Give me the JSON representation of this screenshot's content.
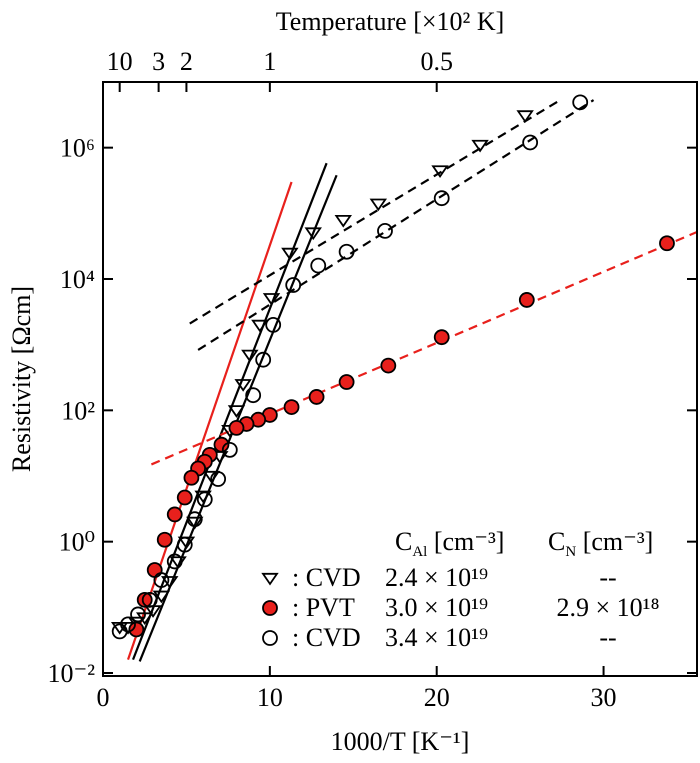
{
  "chart_data": {
    "type": "scatter",
    "xlabel": "1000/T  [K⁻¹]",
    "ylabel": "Resistivity  [Ωcm]",
    "x2label": "Temperature  [×10² K]",
    "xlim": [
      0,
      35.6
    ],
    "xticks": [
      0,
      10,
      20,
      30
    ],
    "x2ticks": [
      10,
      3,
      2,
      1,
      0.5
    ],
    "ylim": [
      0.009,
      10000000
    ],
    "log_y": true,
    "yticks": [
      {
        "value": 0.01,
        "label": "10⁻²"
      },
      {
        "value": 1,
        "label": "10⁰"
      },
      {
        "value": 100,
        "label": "10²"
      },
      {
        "value": 10000,
        "label": "10⁴"
      },
      {
        "value": 1000000,
        "label": "10⁶"
      }
    ],
    "legend_headers": [
      {
        "symbol": "C",
        "subscript": "Al",
        "unit": " [cm⁻³]"
      },
      {
        "symbol": "C",
        "subscript": "N",
        "unit": " [cm⁻³]"
      }
    ],
    "series": [
      {
        "name": ": CVD",
        "marker": "triangle-down",
        "color": "#000000",
        "fill": "none",
        "c_al": "2.4 × 10¹⁹",
        "c_n": "--",
        "x": [
          25.3,
          22.6,
          20.2,
          16.5,
          14.4,
          12.6,
          11.2,
          10.1,
          9.4,
          8.8,
          8.4,
          8.0,
          7.6,
          7.0,
          6.5,
          6.0,
          5.5,
          5.0,
          4.5,
          4.0,
          3.5,
          3.0,
          2.5,
          2.0,
          1.5,
          1.0
        ],
        "values": [
          3100000,
          1100000,
          450000,
          140000,
          79000,
          51000,
          25000,
          5100,
          2000,
          700,
          250,
          100,
          50,
          20,
          10,
          5,
          2,
          1,
          0.5,
          0.25,
          0.15,
          0.09,
          0.07,
          0.06,
          0.05,
          0.05
        ]
      },
      {
        "name": ": PVT",
        "marker": "circle",
        "color": "#000000",
        "fill": "#e8201c",
        "c_al": "3.0 × 10¹⁹",
        "c_n": "2.9 × 10¹⁸",
        "x": [
          33.8,
          25.4,
          20.3,
          17.1,
          14.6,
          12.8,
          11.3,
          10.0,
          9.3,
          8.6,
          8.0,
          7.1,
          6.4,
          6.1,
          5.7,
          5.3,
          4.9,
          4.3,
          3.7,
          3.1,
          2.5,
          2.0
        ],
        "values": [
          35000,
          4800,
          1300,
          480,
          270,
          160,
          112,
          85,
          72,
          62,
          54,
          30,
          21,
          16.5,
          13,
          9.4,
          4.7,
          2.6,
          1.07,
          0.37,
          0.13,
          0.046
        ]
      },
      {
        "name": ": CVD",
        "marker": "circle",
        "color": "#000000",
        "fill": "none",
        "c_al": "3.4 × 10¹⁹",
        "c_n": "--",
        "x": [
          28.6,
          25.6,
          20.3,
          16.9,
          14.6,
          12.9,
          11.4,
          10.2,
          9.6,
          9.0,
          7.6,
          6.9,
          6.1,
          5.5,
          4.9,
          4.3,
          3.5,
          2.8,
          2.1,
          1.5,
          1.0
        ],
        "values": [
          4900000,
          1200000,
          170000,
          54000,
          26000,
          16000,
          8100,
          2000,
          590,
          170,
          25,
          9,
          4.4,
          2.2,
          0.9,
          0.5,
          0.26,
          0.13,
          0.078,
          0.055,
          0.043
        ]
      }
    ],
    "fit_lines": [
      {
        "color": "#e8201c",
        "dashed": false,
        "x": [
          1.5,
          11.3
        ],
        "y": [
          0.016,
          300000
        ]
      },
      {
        "color": "#000000",
        "dashed": false,
        "x": [
          1.8,
          13.4
        ],
        "y": [
          0.016,
          580000
        ]
      },
      {
        "color": "#000000",
        "dashed": false,
        "x": [
          2.2,
          14.0
        ],
        "y": [
          0.015,
          380000
        ]
      },
      {
        "color": "#000000",
        "dashed": true,
        "x": [
          5.2,
          27.4
        ],
        "y": [
          2100,
          5300000
        ]
      },
      {
        "color": "#000000",
        "dashed": true,
        "x": [
          5.7,
          29.4
        ],
        "y": [
          830,
          5300000
        ]
      },
      {
        "color": "#e8201c",
        "dashed": true,
        "x": [
          2.9,
          35.6
        ],
        "y": [
          15,
          52000
        ]
      }
    ]
  }
}
